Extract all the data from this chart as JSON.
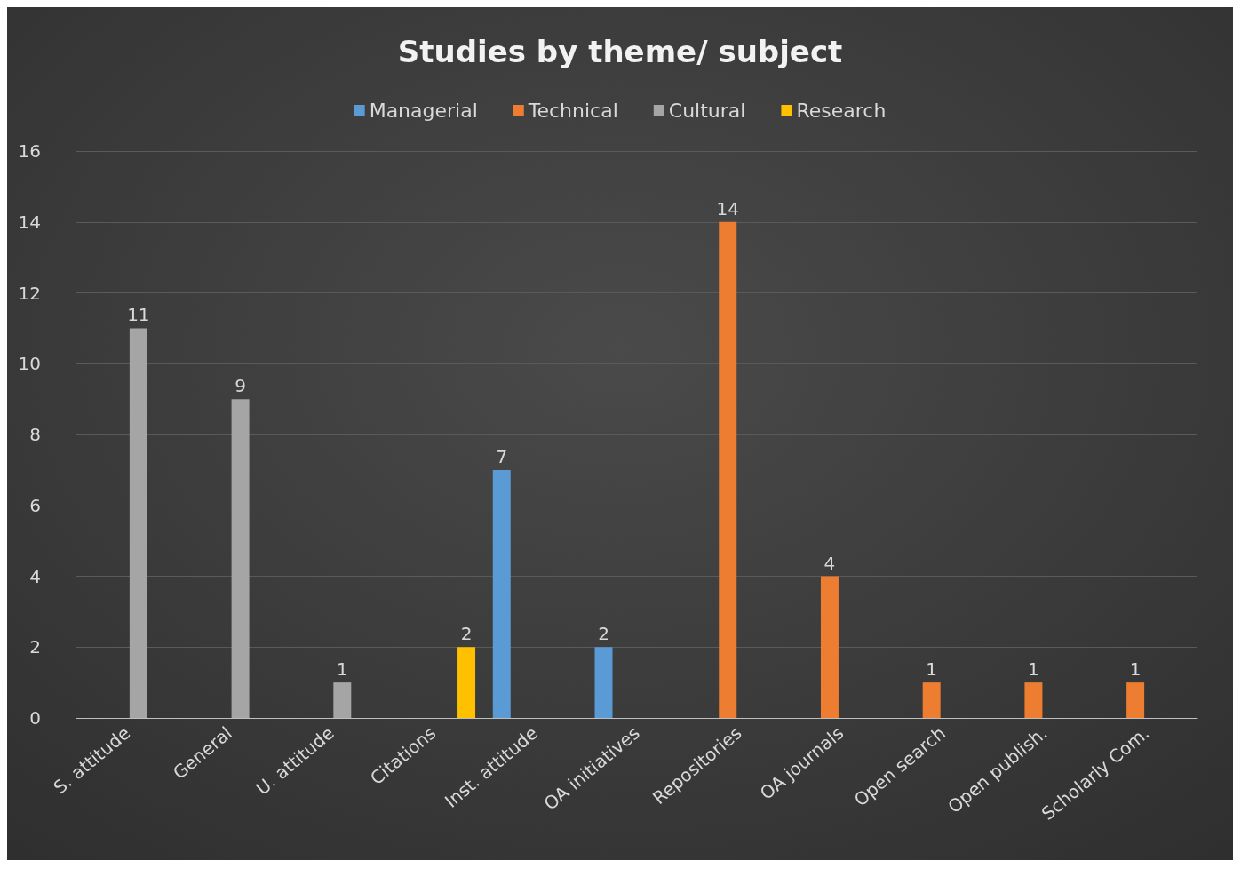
{
  "chart_data": {
    "type": "bar",
    "title": "Studies by theme/ subject",
    "categories": [
      "S. attitude",
      "General",
      "U. attitude",
      "Citations",
      "Inst. attitude",
      "OA initiatives",
      "Repositories",
      "OA journals",
      "Open search",
      "Open publish.",
      "Scholarly Com."
    ],
    "series": [
      {
        "name": "Managerial",
        "color": "#5b9bd5",
        "values": [
          null,
          null,
          null,
          null,
          7,
          2,
          null,
          null,
          null,
          null,
          null
        ]
      },
      {
        "name": "Technical",
        "color": "#ed7d31",
        "values": [
          null,
          null,
          null,
          null,
          null,
          null,
          14,
          4,
          1,
          1,
          1
        ]
      },
      {
        "name": "Cultural",
        "color": "#a5a5a5",
        "values": [
          11,
          9,
          1,
          null,
          null,
          null,
          null,
          null,
          null,
          null,
          null
        ]
      },
      {
        "name": "Research",
        "color": "#ffc000",
        "values": [
          null,
          null,
          null,
          2,
          null,
          null,
          null,
          null,
          null,
          null,
          null
        ]
      }
    ],
    "ylim": [
      0,
      16
    ],
    "yticks": [
      0,
      2,
      4,
      6,
      8,
      10,
      12,
      14,
      16
    ],
    "grid": "y",
    "legend": "top",
    "data_labels": true
  }
}
